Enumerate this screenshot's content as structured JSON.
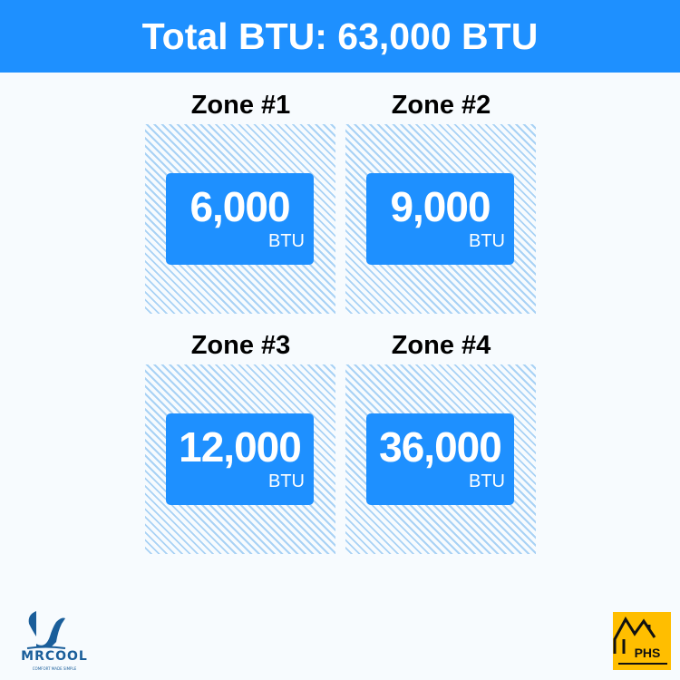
{
  "header": {
    "title": "Total BTU: 63,000 BTU"
  },
  "zones": [
    {
      "title": "Zone #1",
      "value": "6,000",
      "unit": "BTU"
    },
    {
      "title": "Zone #2",
      "value": "9,000",
      "unit": "BTU"
    },
    {
      "title": "Zone #3",
      "value": "12,000",
      "unit": "BTU"
    },
    {
      "title": "Zone #4",
      "value": "36,000",
      "unit": "BTU"
    }
  ],
  "logos": {
    "mrcool": "MRCOOL",
    "mrcool_tagline": "COMFORT MADE SIMPLE",
    "phs": "PHS"
  },
  "colors": {
    "accent": "#1e90ff",
    "hatch": "#a9d2f5",
    "phs_bg": "#ffbe00",
    "mrcool": "#1a5e9a"
  }
}
